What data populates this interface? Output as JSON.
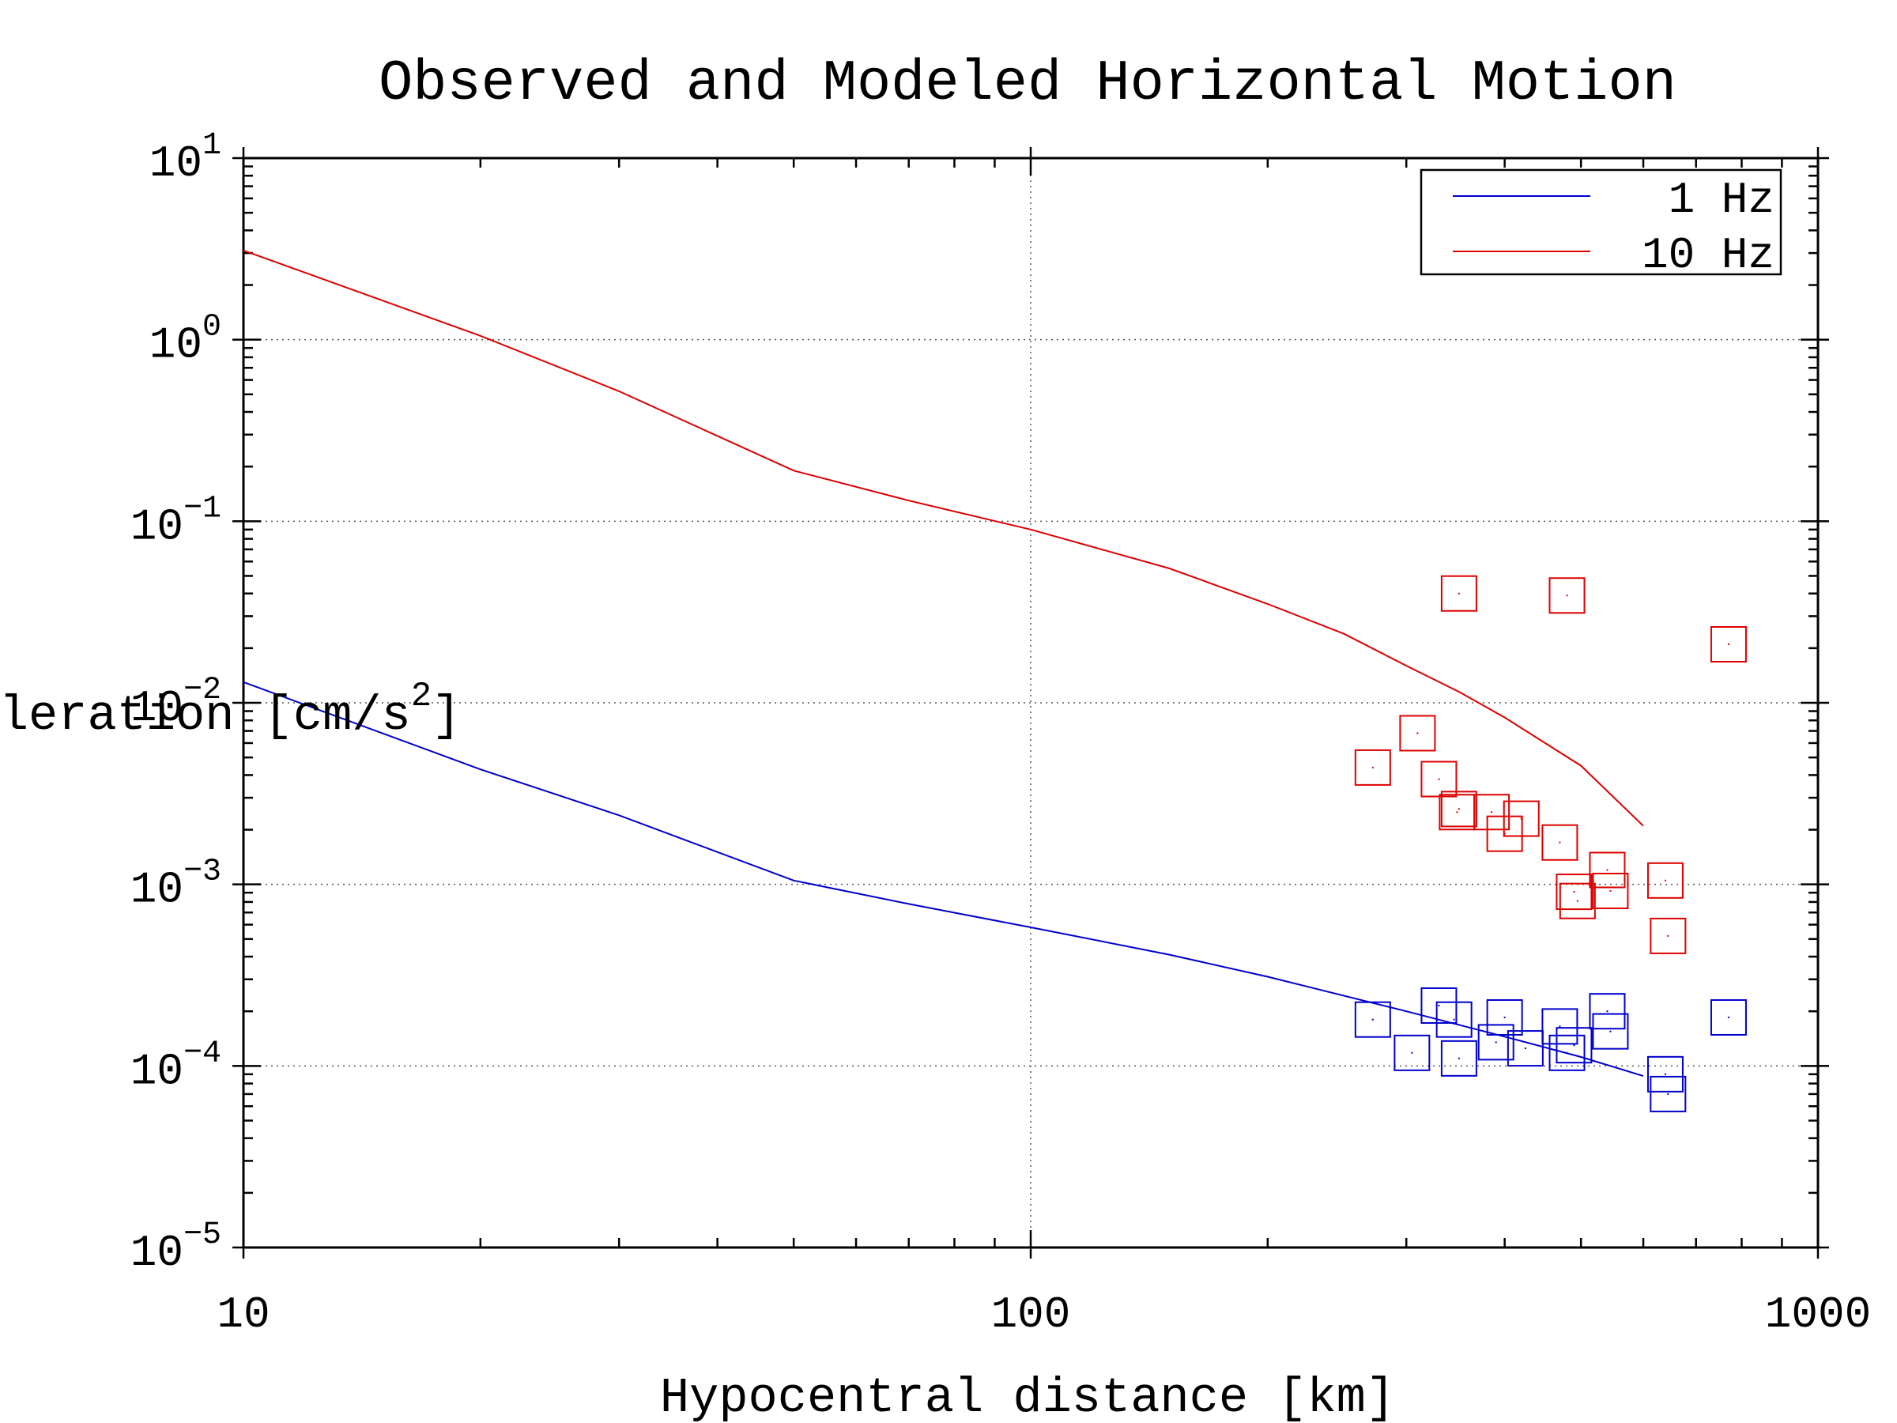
{
  "chart_data": {
    "type": "scatter",
    "title": "Observed and Modeled Horizontal Motion",
    "xlabel": "Hypocentral distance [km]",
    "ylabel_main": "Acceleration [cm/s",
    "ylabel_sup": "2",
    "ylabel_end": "]",
    "xscale": "log",
    "yscale": "log",
    "xlim": [
      10,
      1000
    ],
    "ylim": [
      1e-05,
      10
    ],
    "x_ticks": [
      {
        "value": 10,
        "label": "10"
      },
      {
        "value": 100,
        "label": "100"
      },
      {
        "value": 1000,
        "label": "1000"
      }
    ],
    "y_ticks": [
      {
        "value": 10,
        "base": "10",
        "exp": "1"
      },
      {
        "value": 1,
        "base": "10",
        "exp": "0"
      },
      {
        "value": 0.1,
        "base": "10",
        "exp": "−1"
      },
      {
        "value": 0.01,
        "base": "10",
        "exp": "−2"
      },
      {
        "value": 0.001,
        "base": "10",
        "exp": "−3"
      },
      {
        "value": 0.0001,
        "base": "10",
        "exp": "−4"
      },
      {
        "value": 1e-05,
        "base": "10",
        "exp": "−5"
      }
    ],
    "grid": "dotted at major ticks",
    "legend_position": "top-right",
    "series": [
      {
        "name": "1 Hz",
        "color": "#0000cc",
        "model_line": {
          "x": [
            10,
            20,
            30,
            50,
            70,
            100,
            150,
            200,
            300,
            400,
            500,
            600
          ],
          "y": [
            0.013,
            0.0043,
            0.0024,
            0.00105,
            0.00078,
            0.00058,
            0.00041,
            0.00031,
            0.0002,
            0.000145,
            0.000112,
            8.8e-05
          ]
        },
        "observed": {
          "x": [
            272,
            305,
            330,
            345,
            350,
            390,
            400,
            425,
            470,
            480,
            490,
            540,
            545,
            640,
            645,
            770
          ],
          "y": [
            0.00018,
            0.000118,
            0.000215,
            0.00018,
            0.00011,
            0.000135,
            0.000185,
            0.000125,
            0.000165,
            0.000118,
            0.00013,
            0.0002,
            0.000155,
            9e-05,
            7e-05,
            0.000185
          ]
        }
      },
      {
        "name": "10 Hz",
        "color": "#dd0000",
        "model_line": {
          "x": [
            10,
            20,
            30,
            50,
            70,
            100,
            150,
            200,
            250,
            300,
            350,
            400,
            500,
            600
          ],
          "y": [
            3.1,
            1.05,
            0.52,
            0.19,
            0.13,
            0.09,
            0.055,
            0.035,
            0.024,
            0.016,
            0.0115,
            0.0083,
            0.0045,
            0.0021
          ]
        },
        "observed": {
          "x": [
            272,
            310,
            330,
            348,
            350,
            385,
            400,
            420,
            470,
            490,
            495,
            540,
            545,
            640,
            645,
            770,
            350,
            480
          ],
          "y": [
            0.0044,
            0.0068,
            0.0038,
            0.0025,
            0.0026,
            0.0025,
            0.0019,
            0.0023,
            0.0017,
            0.00091,
            0.00081,
            0.0012,
            0.00092,
            0.00105,
            0.00052,
            0.021,
            0.04,
            0.039
          ]
        }
      }
    ]
  }
}
